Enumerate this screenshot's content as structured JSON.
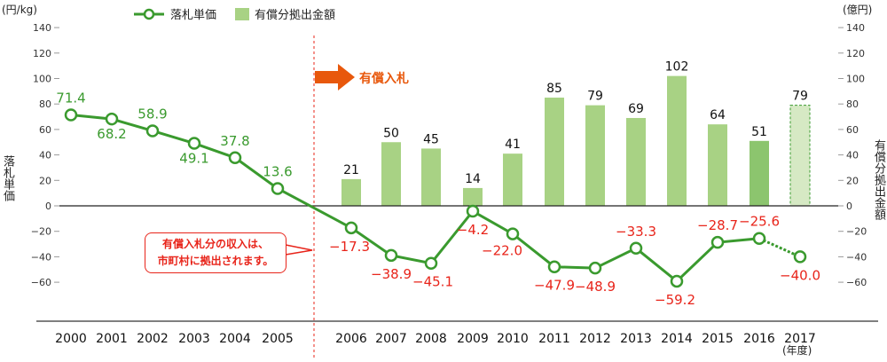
{
  "chart_data": {
    "type": "bar+line",
    "title": "",
    "categories": [
      "2000",
      "2001",
      "2002",
      "2003",
      "2004",
      "2005",
      "2006",
      "2007",
      "2008",
      "2009",
      "2010",
      "2011",
      "2012",
      "2013",
      "2014",
      "2015",
      "2016",
      "2017"
    ],
    "series": [
      {
        "name": "落札単価",
        "type": "line",
        "axis": "left",
        "color": "#3a9a2e",
        "values": [
          71.4,
          68.2,
          58.9,
          49.1,
          37.8,
          13.6,
          -17.3,
          -38.9,
          -45.1,
          -4.2,
          -22.0,
          -47.9,
          -48.9,
          -33.3,
          -59.2,
          -28.7,
          -25.6,
          -40.0
        ],
        "labels": [
          "71.4",
          "68.2",
          "58.9",
          "49.1",
          "37.8",
          "13.6",
          "−17.3",
          "−38.9",
          "−45.1",
          "−4.2",
          "−22.0",
          "−47.9",
          "−48.9",
          "−33.3",
          "−59.2",
          "−28.7",
          "−25.6",
          "−40.0"
        ],
        "dashed_last_segment": true
      },
      {
        "name": "有償分拠出金額",
        "type": "bar",
        "axis": "right",
        "color": "#a8d284",
        "values": [
          null,
          null,
          null,
          null,
          null,
          null,
          21,
          50,
          45,
          14,
          41,
          85,
          79,
          69,
          102,
          64,
          51,
          79
        ],
        "labels": [
          "",
          "",
          "",
          "",
          "",
          "",
          "21",
          "50",
          "45",
          "14",
          "41",
          "85",
          "79",
          "69",
          "102",
          "64",
          "51",
          "79"
        ],
        "special": {
          "2016": "#8cc56e",
          "2017": "estimate (dashed outline, light fill)"
        }
      }
    ],
    "xlabel": "(年度)",
    "ylabel_left": "落札単価",
    "ylabel_right": "有償分拠出金額",
    "unit_left": "(円/kg)",
    "unit_right": "(億円)",
    "ylim": [
      -60,
      140
    ],
    "yticks": [
      140,
      120,
      100,
      80,
      60,
      40,
      20,
      0,
      -20,
      -40,
      -60
    ],
    "ytick_labels": [
      "140",
      "120",
      "100",
      "80",
      "60",
      "40",
      "20",
      "0",
      "−20",
      "−40",
      "−60"
    ],
    "legend_position": "top",
    "grid": false,
    "annotations": [
      {
        "text": "有償入札",
        "type": "arrow",
        "at": "2006"
      },
      {
        "text": "有償入札分の収入は、市町村に拠出されます。",
        "type": "callout"
      }
    ]
  },
  "units": {
    "left": "(円/kg)",
    "right": "(億円)",
    "x": "(年度)"
  },
  "legend": {
    "line_label": "落札単価",
    "bar_label": "有償分拠出金額"
  },
  "axis_titles": {
    "left": "落札単価",
    "right": "有償分拠出金額"
  },
  "annotation": {
    "arrow_label": "有償入札",
    "callout_line1": "有償入札分の収入は、",
    "callout_line2": "市町村に拠出されます。"
  },
  "colors": {
    "line": "#3a9a2e",
    "bar": "#a8d284",
    "bar_2016": "#8cc56e",
    "bar_estimate_fill": "#d6e9c4",
    "negative_label": "#e8241a",
    "positive_label": "#3a9a2e",
    "arrow": "#e8580c"
  }
}
